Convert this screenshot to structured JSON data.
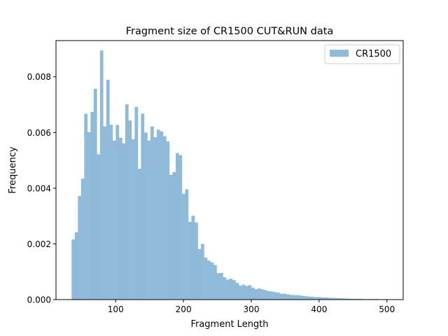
{
  "chart_data": {
    "type": "bar",
    "title": "Fragment size of CR1500 CUT&RUN data",
    "xlabel": "Fragment Length",
    "ylabel": "Frequency",
    "xlim": [
      12,
      524
    ],
    "ylim": [
      0,
      0.0093
    ],
    "x_ticks": [
      100,
      200,
      300,
      400,
      500
    ],
    "y_ticks": [
      0.0,
      0.002,
      0.004,
      0.006,
      0.008
    ],
    "x_tick_labels": [
      "100",
      "200",
      "300",
      "400",
      "500"
    ],
    "y_tick_labels": [
      "0.000",
      "0.002",
      "0.004",
      "0.006",
      "0.008"
    ],
    "legend_position": "top-right",
    "bin_start": 35,
    "bin_width": 4.65,
    "series": [
      {
        "name": "CR1500",
        "color": "#8fbad9",
        "values": [
          0.00216,
          0.00242,
          0.00372,
          0.00434,
          0.00667,
          0.00601,
          0.00674,
          0.00757,
          0.00522,
          0.00895,
          0.00622,
          0.00789,
          0.00628,
          0.00571,
          0.00627,
          0.00581,
          0.00561,
          0.00701,
          0.00643,
          0.00576,
          0.00692,
          0.0047,
          0.00668,
          0.006,
          0.00571,
          0.00622,
          0.00583,
          0.0061,
          0.00604,
          0.00587,
          0.00568,
          0.00448,
          0.00458,
          0.00526,
          0.00519,
          0.0038,
          0.00396,
          0.00279,
          0.00301,
          0.00277,
          0.00182,
          0.002,
          0.00151,
          0.0014,
          0.00134,
          0.00124,
          0.00095,
          0.00096,
          0.0008,
          0.00072,
          0.00075,
          0.0007,
          0.0006,
          0.0005,
          0.00054,
          0.00049,
          0.00052,
          0.00043,
          0.00037,
          0.0004,
          0.00037,
          0.00034,
          0.0003,
          0.00029,
          0.00027,
          0.00025,
          0.00021,
          0.00021,
          0.00019,
          0.00017,
          0.00016,
          0.00016,
          0.00015,
          0.00013,
          0.00012,
          0.00011,
          0.0001,
          9e-05,
          9e-05,
          8e-05,
          8e-05,
          7e-05,
          6e-05,
          6e-05,
          5e-05,
          5e-05,
          4e-05,
          4e-05,
          3e-05,
          3e-05,
          3e-05,
          3e-05,
          2e-05,
          2e-05,
          2e-05,
          2e-05,
          2e-05,
          1e-05,
          1e-05,
          1e-05
        ]
      }
    ]
  }
}
